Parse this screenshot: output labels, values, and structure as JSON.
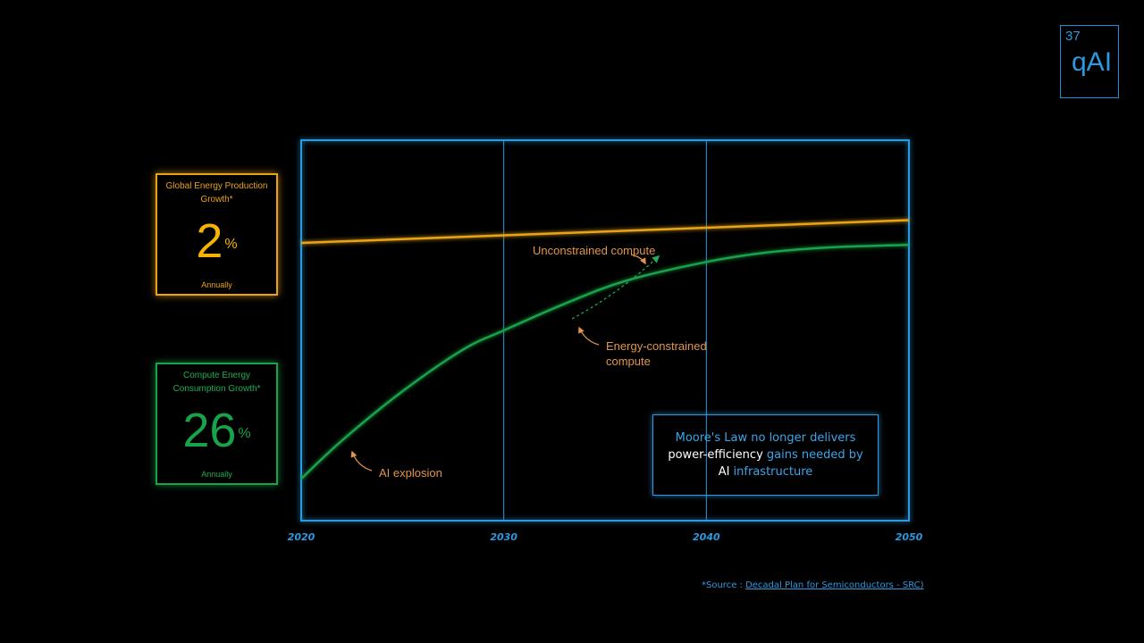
{
  "logo": {
    "page_number": "37",
    "brand": "qAI"
  },
  "stats": {
    "energy_production": {
      "title": "Global Energy Production Growth*",
      "value": "2",
      "unit": "%",
      "period": "Annually"
    },
    "compute_consumption": {
      "title": "Compute Energy Consumption Growth*",
      "value": "26",
      "unit": "%",
      "period": "Annually"
    }
  },
  "chart_data": {
    "type": "line",
    "x_ticks": [
      "2020",
      "2030",
      "2040",
      "2050"
    ],
    "xlim": [
      2020,
      2050
    ],
    "ylim": [
      0,
      100
    ],
    "grid": true,
    "series": [
      {
        "color": "#e8a317",
        "x": [
          2020,
          2025,
          2030,
          2035,
          2040,
          2045,
          2050
        ],
        "y": [
          73,
          74,
          75,
          76,
          77,
          78,
          79
        ]
      },
      {
        "color": "#17a34a",
        "x": [
          2020,
          2022,
          2025,
          2028,
          2030,
          2033,
          2036,
          2040,
          2043,
          2046,
          2050
        ],
        "y": [
          11,
          21,
          34,
          45,
          50,
          57,
          63,
          68,
          70.5,
          71.8,
          72.5
        ]
      }
    ],
    "annotations": {
      "unconstrained": "Unconstrained compute",
      "energy_constrained_line1": "Energy-constrained",
      "energy_constrained_line2": "compute",
      "ai_explosion": "AI explosion"
    }
  },
  "callout": {
    "part1": "Moore's Law no longer delivers",
    "part2": "power-efficiency",
    "part3": " gains needed by",
    "part4": "AI",
    "part5": " infrastructure"
  },
  "source": {
    "prefix": "*Source : ",
    "link_text": "Decadal Plan for Semiconductors - SRC)"
  },
  "colors": {
    "accent_blue": "#2a9be0",
    "orange": "#e8a317",
    "green": "#17a34a"
  }
}
